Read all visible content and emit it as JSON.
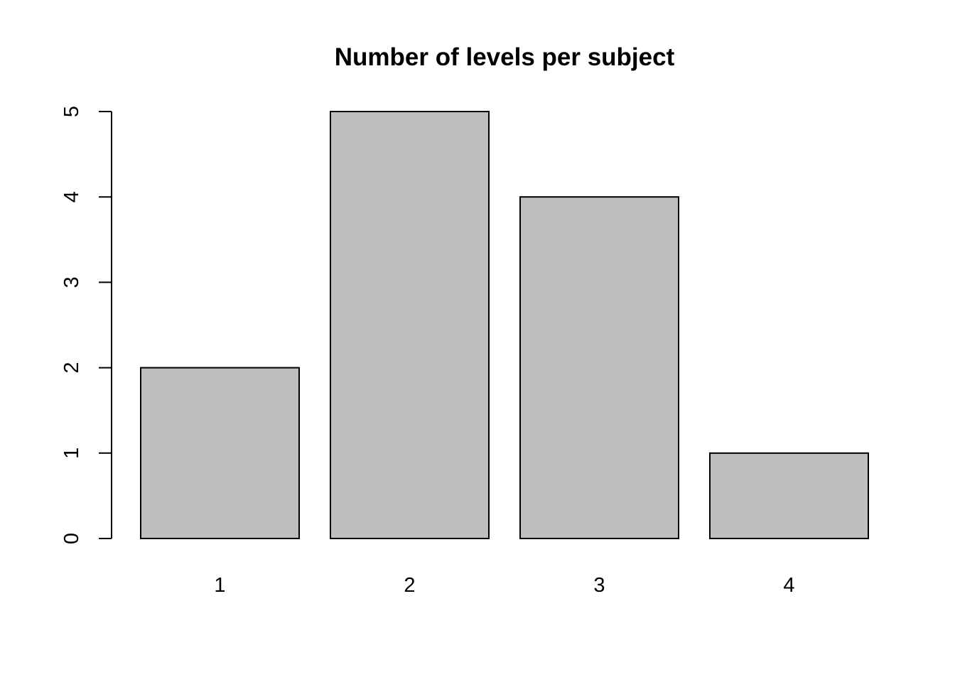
{
  "chart_data": {
    "type": "bar",
    "title": "Number of levels per subject",
    "xlabel": "",
    "ylabel": "",
    "categories": [
      "1",
      "2",
      "3",
      "4"
    ],
    "values": [
      2,
      5,
      4,
      1
    ],
    "ylim": [
      0,
      5
    ],
    "yticks": [
      0,
      1,
      2,
      3,
      4,
      5
    ],
    "grid": false,
    "legend": "none",
    "bar_color": "#bebebe",
    "bar_edge_color": "#000000"
  }
}
